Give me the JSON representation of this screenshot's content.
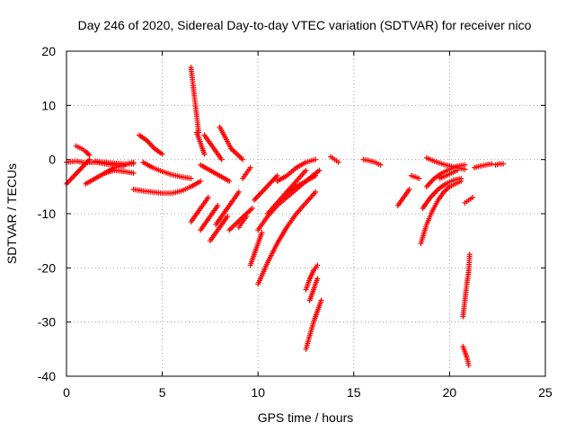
{
  "chart_data": {
    "type": "scatter",
    "title": "Day 246 of 2020, Sidereal Day-to-day VTEC variation (SDTVAR) for receiver nico",
    "xlabel": "GPS time / hours",
    "ylabel": "SDTVAR / TECUs",
    "xlim": [
      0,
      25
    ],
    "ylim": [
      -40,
      20
    ],
    "xticks": [
      0,
      5,
      10,
      15,
      20,
      25
    ],
    "yticks": [
      -40,
      -30,
      -20,
      -10,
      0,
      10,
      20
    ],
    "xtick_labels": [
      "0",
      "5",
      "10",
      "15",
      "20",
      "25"
    ],
    "ytick_labels": [
      "-40",
      "-30",
      "-20",
      "-10",
      "0",
      "10",
      "20"
    ],
    "grid": true,
    "marker": "+",
    "color": "#ff0000",
    "tracks": [
      {
        "x": [
          0.0,
          0.4,
          0.8,
          1.2
        ],
        "y": [
          -4.5,
          -3.0,
          -1.5,
          0.0
        ]
      },
      {
        "x": [
          0.0,
          0.5,
          1.0,
          1.5,
          2.0,
          2.5,
          3.0
        ],
        "y": [
          -0.5,
          -0.3,
          -0.6,
          -0.5,
          -0.8,
          -1.0,
          -1.2
        ]
      },
      {
        "x": [
          0.5,
          0.8,
          1.0,
          1.2
        ],
        "y": [
          2.5,
          2.0,
          1.5,
          0.8
        ]
      },
      {
        "x": [
          1.0,
          1.5,
          2.0,
          2.5,
          3.0,
          3.5
        ],
        "y": [
          -4.5,
          -3.5,
          -2.5,
          -1.5,
          -1.0,
          -0.5
        ]
      },
      {
        "x": [
          1.5,
          2.0,
          2.5,
          3.0,
          3.5
        ],
        "y": [
          -0.3,
          -0.5,
          -0.7,
          -0.8,
          -0.8
        ]
      },
      {
        "x": [
          2.0,
          2.5,
          3.0,
          3.5
        ],
        "y": [
          -2.5,
          -2.0,
          -2.2,
          -2.5
        ]
      },
      {
        "x": [
          3.5,
          4.0,
          4.5,
          5.0,
          5.5,
          6.0,
          6.5,
          7.0
        ],
        "y": [
          -5.5,
          -5.8,
          -6.0,
          -6.2,
          -6.2,
          -5.8,
          -5.0,
          -4.0
        ]
      },
      {
        "x": [
          3.8,
          4.2,
          4.6,
          5.0
        ],
        "y": [
          4.5,
          3.5,
          2.0,
          1.0
        ]
      },
      {
        "x": [
          4.0,
          4.5,
          5.0,
          5.5,
          6.0,
          6.5
        ],
        "y": [
          -0.5,
          -1.5,
          -2.2,
          -2.8,
          -3.2,
          -3.5
        ]
      },
      {
        "x": [
          6.5,
          6.6,
          6.7,
          6.8,
          6.9
        ],
        "y": [
          17.0,
          14.0,
          11.0,
          8.0,
          5.0
        ]
      },
      {
        "x": [
          6.5,
          6.8,
          7.1,
          7.4
        ],
        "y": [
          -11.5,
          -10.0,
          -8.5,
          -7.0
        ]
      },
      {
        "x": [
          6.8,
          7.0,
          7.2
        ],
        "y": [
          5.0,
          3.0,
          1.0
        ]
      },
      {
        "x": [
          7.0,
          7.3,
          7.6,
          7.9
        ],
        "y": [
          -13.0,
          -11.5,
          -10.0,
          -8.5
        ]
      },
      {
        "x": [
          7.0,
          7.5,
          8.0,
          8.5
        ],
        "y": [
          -1.0,
          -2.0,
          -3.0,
          -4.0
        ]
      },
      {
        "x": [
          7.2,
          7.5,
          7.8,
          8.1
        ],
        "y": [
          4.5,
          3.0,
          1.5,
          0.0
        ]
      },
      {
        "x": [
          7.5,
          7.8,
          8.1,
          8.4
        ],
        "y": [
          -15.0,
          -13.5,
          -12.0,
          -10.5
        ]
      },
      {
        "x": [
          7.8,
          8.1,
          8.4,
          8.7,
          9.0
        ],
        "y": [
          -12.0,
          -10.5,
          -9.0,
          -7.5,
          -6.0
        ]
      },
      {
        "x": [
          8.0,
          8.3,
          8.6
        ],
        "y": [
          6.0,
          4.0,
          2.0
        ]
      },
      {
        "x": [
          8.5,
          8.8,
          9.1,
          9.4,
          9.7
        ],
        "y": [
          -13.0,
          -12.0,
          -11.0,
          -10.0,
          -9.0
        ]
      },
      {
        "x": [
          8.6,
          8.9,
          9.2
        ],
        "y": [
          2.0,
          1.0,
          0.0
        ]
      },
      {
        "x": [
          9.0,
          9.2,
          9.4
        ],
        "y": [
          -12.5,
          -11.5,
          -10.5
        ]
      },
      {
        "x": [
          9.2,
          9.4,
          9.6
        ],
        "y": [
          -3.5,
          -2.5,
          -1.5
        ]
      },
      {
        "x": [
          9.6,
          9.8,
          10.0,
          10.2
        ],
        "y": [
          -19.5,
          -17.5,
          -15.5,
          -13.5
        ]
      },
      {
        "x": [
          9.8,
          10.2,
          10.6,
          11.0
        ],
        "y": [
          -7.5,
          -6.0,
          -4.5,
          -3.0
        ]
      },
      {
        "x": [
          10.0,
          10.5,
          11.0,
          11.5,
          12.0,
          12.5,
          13.0
        ],
        "y": [
          -23.0,
          -19.0,
          -15.5,
          -12.5,
          -10.0,
          -8.0,
          -6.0
        ]
      },
      {
        "x": [
          10.0,
          10.5,
          11.0,
          11.5,
          12.0,
          12.5,
          13.2
        ],
        "y": [
          -13.0,
          -10.5,
          -8.5,
          -7.0,
          -5.5,
          -4.0,
          -2.0
        ]
      },
      {
        "x": [
          10.5,
          11.0,
          11.5,
          12.0,
          12.5
        ],
        "y": [
          -10.0,
          -8.0,
          -6.0,
          -4.0,
          -2.0
        ]
      },
      {
        "x": [
          11.0,
          11.5,
          12.0,
          12.5,
          13.0
        ],
        "y": [
          -4.0,
          -3.0,
          -1.5,
          -0.5,
          0.0
        ]
      },
      {
        "x": [
          11.5,
          12.0,
          12.5,
          13.0
        ],
        "y": [
          -6.0,
          -5.0,
          -4.0,
          -3.0
        ]
      },
      {
        "x": [
          12.5,
          12.7,
          12.9,
          13.1
        ],
        "y": [
          -24.0,
          -22.0,
          -20.5,
          -19.5
        ]
      },
      {
        "x": [
          12.5,
          12.7,
          12.9,
          13.1,
          13.3
        ],
        "y": [
          -35.0,
          -32.5,
          -30.0,
          -28.0,
          -26.0
        ]
      },
      {
        "x": [
          12.7,
          12.9,
          13.1
        ],
        "y": [
          -26.0,
          -24.0,
          -22.0
        ]
      },
      {
        "x": [
          13.8,
          14.0,
          14.2
        ],
        "y": [
          0.5,
          0.0,
          -0.5
        ]
      },
      {
        "x": [
          15.5,
          15.8,
          16.1,
          16.4
        ],
        "y": [
          0.0,
          -0.2,
          -0.5,
          -1.0
        ]
      },
      {
        "x": [
          17.3,
          17.6,
          17.9
        ],
        "y": [
          -8.5,
          -7.0,
          -5.5
        ]
      },
      {
        "x": [
          18.0,
          18.2,
          18.4
        ],
        "y": [
          -3.0,
          -3.2,
          -3.5
        ]
      },
      {
        "x": [
          18.5,
          18.8,
          19.1,
          19.4,
          19.7,
          20.0,
          20.3,
          20.6
        ],
        "y": [
          -15.5,
          -12.0,
          -9.5,
          -7.5,
          -6.0,
          -5.0,
          -4.5,
          -4.0
        ]
      },
      {
        "x": [
          18.6,
          19.0,
          19.4,
          19.8,
          20.2,
          20.6
        ],
        "y": [
          -9.0,
          -7.0,
          -5.5,
          -4.5,
          -3.8,
          -3.5
        ]
      },
      {
        "x": [
          18.8,
          19.2,
          19.6,
          20.0,
          20.4,
          20.8
        ],
        "y": [
          -5.0,
          -3.5,
          -2.5,
          -1.8,
          -1.2,
          -1.0
        ]
      },
      {
        "x": [
          18.8,
          19.2,
          19.6,
          20.0,
          20.4,
          20.8
        ],
        "y": [
          0.3,
          -0.3,
          -0.8,
          -1.2,
          -1.5,
          -1.8
        ]
      },
      {
        "x": [
          19.5,
          19.8,
          20.1,
          20.4
        ],
        "y": [
          -3.5,
          -3.0,
          -2.5,
          -2.0
        ]
      },
      {
        "x": [
          20.7,
          20.8,
          20.9,
          21.0,
          21.05
        ],
        "y": [
          -29.0,
          -26.0,
          -23.0,
          -20.5,
          -17.5
        ]
      },
      {
        "x": [
          20.7,
          20.9,
          21.0
        ],
        "y": [
          -34.5,
          -36.5,
          -38.0
        ]
      },
      {
        "x": [
          20.8,
          21.0,
          21.2
        ],
        "y": [
          -8.0,
          -7.5,
          -7.0
        ]
      },
      {
        "x": [
          21.3,
          21.6,
          21.9,
          22.2
        ],
        "y": [
          -1.5,
          -1.2,
          -1.0,
          -0.8
        ]
      },
      {
        "x": [
          22.4,
          22.6,
          22.8
        ],
        "y": [
          -1.0,
          -0.8,
          -0.8
        ]
      }
    ]
  }
}
